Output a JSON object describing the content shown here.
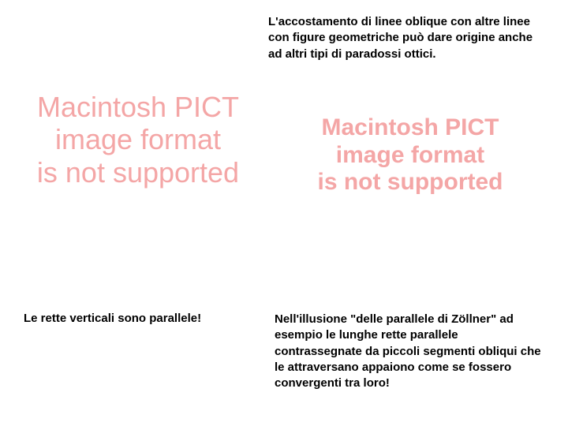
{
  "intro": {
    "text": "L'accostamento di linee oblique con altre linee con figure geometriche può dare origine anche ad altri tipi di paradossi ottici."
  },
  "placeholders": {
    "left": {
      "line1": "Macintosh PICT",
      "line2": "image format",
      "line3": "is not supported",
      "color": "#f4a6a6",
      "fontsize": 36
    },
    "right": {
      "line1": "Macintosh PICT",
      "line2": "image format",
      "line3": "is not supported",
      "color": "#f4a6a6",
      "fontsize": 30
    }
  },
  "captions": {
    "left": "Le rette verticali sono parallele!",
    "right": "Nell'illusione \"delle parallele di Zöllner\" ad esempio le lunghe rette parallele contrassegnate da piccoli segmenti obliqui che le attraversano appaiono come se fossero convergenti tra loro!"
  },
  "colors": {
    "background": "#ffffff",
    "text": "#000000",
    "placeholder": "#f4a6a6"
  }
}
